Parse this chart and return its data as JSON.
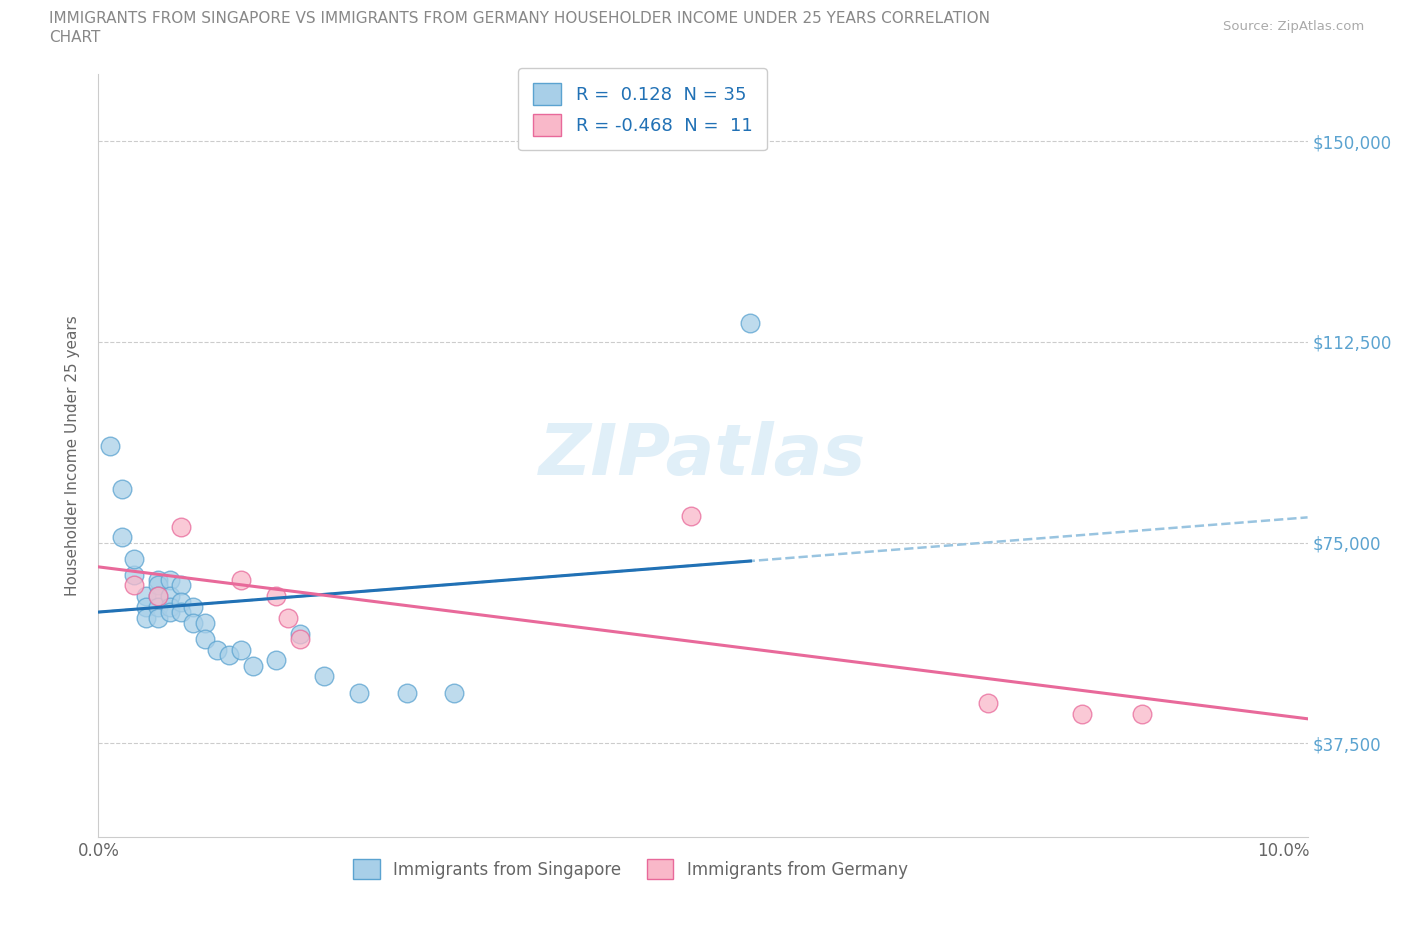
{
  "title_line1": "IMMIGRANTS FROM SINGAPORE VS IMMIGRANTS FROM GERMANY HOUSEHOLDER INCOME UNDER 25 YEARS CORRELATION",
  "title_line2": "CHART",
  "source_text": "Source: ZipAtlas.com",
  "ylabel": "Householder Income Under 25 years",
  "xlim": [
    0.0,
    0.102
  ],
  "ylim": [
    20000,
    162500
  ],
  "x_ticks": [
    0.0,
    0.02,
    0.04,
    0.06,
    0.08,
    0.1
  ],
  "y_ticks": [
    37500,
    75000,
    112500,
    150000
  ],
  "y_tick_labels_right": [
    "$37,500",
    "$75,000",
    "$112,500",
    "$150,000"
  ],
  "singapore_color": "#a8cfe8",
  "singapore_edge": "#5ba3d0",
  "germany_color": "#f9b8c9",
  "germany_edge": "#e8699a",
  "singapore_line_color": "#2171b5",
  "singapore_dash_color": "#99c4e0",
  "germany_line_color": "#e8699a",
  "singapore_R": "0.128",
  "singapore_N": "35",
  "germany_R": "-0.468",
  "germany_N": "11",
  "watermark": "ZIPatlas",
  "singapore_x": [
    0.001,
    0.002,
    0.002,
    0.003,
    0.003,
    0.004,
    0.004,
    0.004,
    0.005,
    0.005,
    0.005,
    0.005,
    0.005,
    0.006,
    0.006,
    0.006,
    0.006,
    0.007,
    0.007,
    0.007,
    0.008,
    0.008,
    0.009,
    0.009,
    0.01,
    0.011,
    0.012,
    0.013,
    0.015,
    0.017,
    0.019,
    0.022,
    0.026,
    0.03,
    0.055
  ],
  "singapore_y": [
    93000,
    85000,
    76000,
    69000,
    72000,
    65000,
    63000,
    61000,
    68000,
    67000,
    65000,
    63000,
    61000,
    68000,
    65000,
    63000,
    62000,
    67000,
    64000,
    62000,
    63000,
    60000,
    60000,
    57000,
    55000,
    54000,
    55000,
    52000,
    53000,
    58000,
    50000,
    47000,
    47000,
    47000,
    116000
  ],
  "germany_x": [
    0.003,
    0.005,
    0.007,
    0.012,
    0.015,
    0.016,
    0.017,
    0.05,
    0.075,
    0.083,
    0.088
  ],
  "germany_y": [
    67000,
    65000,
    78000,
    68000,
    65000,
    61000,
    57000,
    80000,
    45000,
    43000,
    43000
  ]
}
